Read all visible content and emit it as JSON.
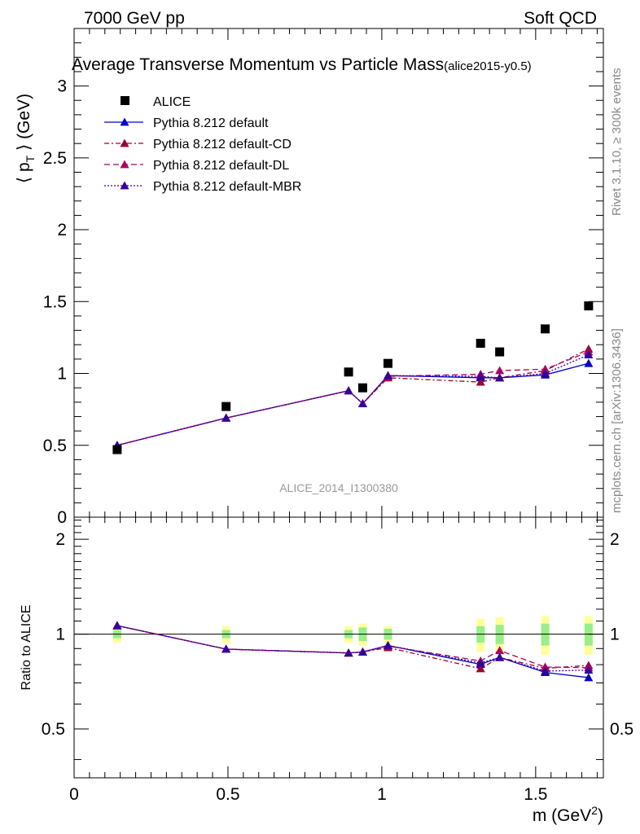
{
  "header": {
    "left_label": "7000 GeV pp",
    "right_label": "Soft QCD",
    "title": "Average Transverse Momentum vs Particle Mass",
    "title_tag": "(alice2015-y0.5)",
    "analysis_label": "ALICE_2014_I1300380",
    "side_rivet": "Rivet 3.1.10, ≥ 300k events",
    "side_mcplots": "mcplots.cern.ch [arXiv:1306.3436]"
  },
  "axes": {
    "ylabel_main": "⟨ p",
    "ylabel_main_sub": "T",
    "ylabel_main_rest": " ⟩ (GeV)",
    "ylabel_ratio": "Ratio to ALICE",
    "xlabel": "m (GeV",
    "xlabel_sup": "2",
    "xlabel_end": ")",
    "xlim": [
      0,
      1.72
    ],
    "ylim_main": [
      0,
      3.4
    ],
    "ylim_ratio": [
      0.35,
      2.35
    ],
    "ratio_scale": "log",
    "x_ticks": [
      {
        "v": 0,
        "label": "0"
      },
      {
        "v": 0.5,
        "label": "0.5"
      },
      {
        "v": 1,
        "label": "1"
      },
      {
        "v": 1.5,
        "label": "1.5"
      }
    ],
    "y_ticks_main": [
      {
        "v": 0,
        "label": "0"
      },
      {
        "v": 0.5,
        "label": "0.5"
      },
      {
        "v": 1,
        "label": "1"
      },
      {
        "v": 1.5,
        "label": "1.5"
      },
      {
        "v": 2,
        "label": "2"
      },
      {
        "v": 2.5,
        "label": "2.5"
      },
      {
        "v": 3,
        "label": "3"
      }
    ],
    "y_ticks_ratio": [
      {
        "v": 0.5,
        "label": "0.5"
      },
      {
        "v": 1,
        "label": "1"
      },
      {
        "v": 2,
        "label": "2"
      }
    ]
  },
  "chart_data": {
    "type": "scatter",
    "title": "Average Transverse Momentum vs Particle Mass",
    "xlabel": "m (GeV²)",
    "ylabel": "⟨ pT ⟩ (GeV)",
    "x": [
      0.14,
      0.494,
      0.892,
      0.938,
      1.02,
      1.321,
      1.383,
      1.531,
      1.672
    ],
    "data": {
      "name": "ALICE",
      "values": [
        0.47,
        0.77,
        1.01,
        0.9,
        1.07,
        1.21,
        1.15,
        1.31,
        1.47
      ],
      "ratio_band_stat": [
        0.03,
        0.03,
        0.03,
        0.05,
        0.04,
        0.06,
        0.07,
        0.08,
        0.08
      ],
      "ratio_band_tot": [
        0.06,
        0.06,
        0.06,
        0.08,
        0.06,
        0.12,
        0.13,
        0.14,
        0.14
      ]
    },
    "series": [
      {
        "name": "Pythia 8.212 default",
        "color": "#0000cc",
        "dash": "solid",
        "values": [
          0.5,
          0.69,
          0.88,
          0.79,
          0.985,
          0.97,
          0.97,
          0.99,
          1.07
        ]
      },
      {
        "name": "Pythia 8.212 default-CD",
        "color": "#990033",
        "dash": "dashdot",
        "values": [
          0.5,
          0.69,
          0.88,
          0.79,
          0.97,
          0.94,
          0.97,
          1.02,
          1.17
        ]
      },
      {
        "name": "Pythia 8.212 default-DL",
        "color": "#aa0066",
        "dash": "dashed",
        "values": [
          0.5,
          0.69,
          0.88,
          0.79,
          0.98,
          0.995,
          1.02,
          1.03,
          1.15
        ]
      },
      {
        "name": "Pythia 8.212 default-MBR",
        "color": "#330099",
        "dash": "dotted",
        "values": [
          0.5,
          0.69,
          0.88,
          0.79,
          0.985,
          0.98,
          0.97,
          1.0,
          1.13
        ]
      }
    ],
    "legend_position": "top-left",
    "grid": false
  }
}
